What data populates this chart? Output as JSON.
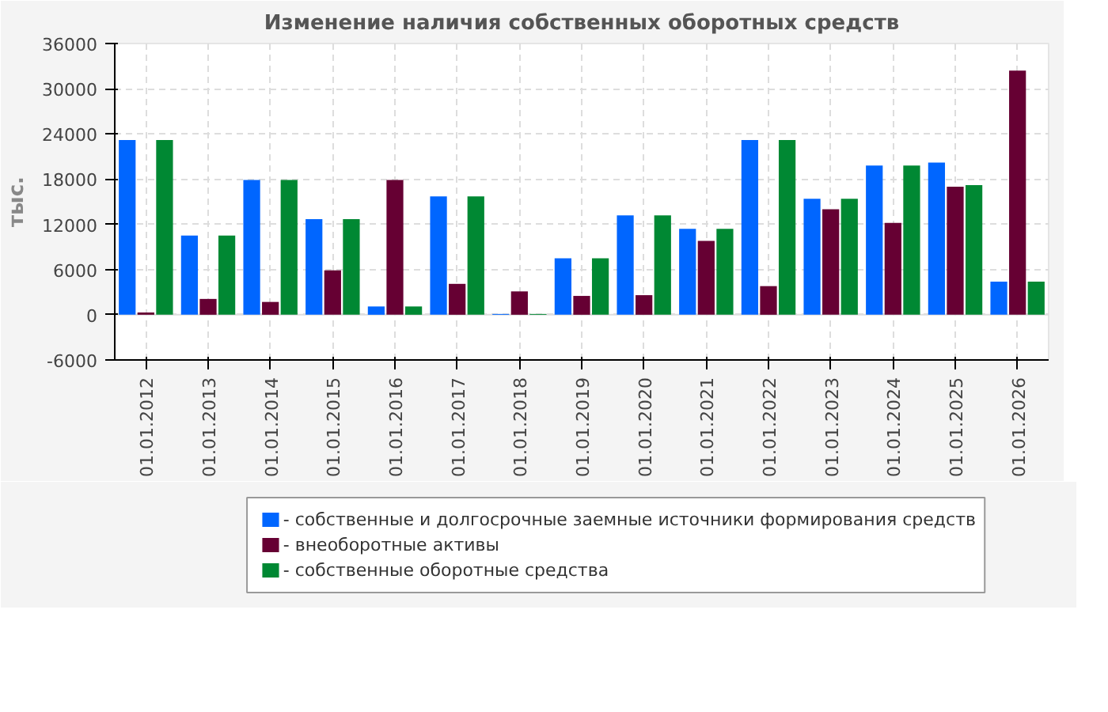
{
  "chart_data": {
    "type": "bar",
    "title": "Изменение наличия собственных оборотных средств",
    "ylabel": "тыс.",
    "categories": [
      "01.01.2012",
      "01.01.2013",
      "01.01.2014",
      "01.01.2015",
      "01.01.2016",
      "01.01.2017",
      "01.01.2018",
      "01.01.2019",
      "01.01.2020",
      "01.01.2021",
      "01.01.2022",
      "01.01.2023",
      "01.01.2024",
      "01.01.2025",
      "01.01.2026"
    ],
    "series": [
      {
        "name": "- собственные и долгосрочные заемные источники формирования средств",
        "color": "#0066ff",
        "values": [
          23200,
          10500,
          17900,
          12700,
          1100,
          15700,
          100,
          7500,
          13200,
          11400,
          23200,
          15400,
          19800,
          20200,
          4400
        ]
      },
      {
        "name": "- внеоборотные активы",
        "color": "#660033",
        "values": [
          300,
          2100,
          1700,
          5900,
          17900,
          4100,
          3100,
          2500,
          2600,
          9800,
          3800,
          14000,
          12200,
          17000,
          32400
        ]
      },
      {
        "name": "- собственные оборотные средства",
        "color": "#008833",
        "values": [
          23200,
          10500,
          17900,
          12700,
          1100,
          15700,
          100,
          7500,
          13200,
          11400,
          23200,
          15400,
          19800,
          17200,
          4400
        ]
      }
    ],
    "ylim": [
      -6000,
      36000
    ],
    "yticks": [
      -6000,
      0,
      6000,
      12000,
      18000,
      24000,
      30000,
      36000
    ],
    "grid": true,
    "legend": "bottom"
  }
}
